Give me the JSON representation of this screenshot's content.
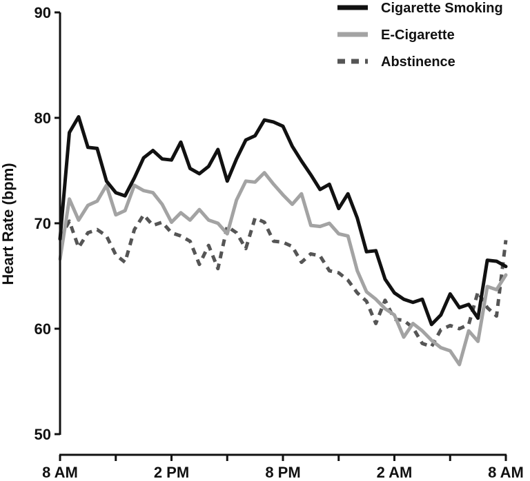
{
  "chart_data": {
    "type": "line",
    "title": "",
    "xlabel": "",
    "ylabel": "Heart Rate (bpm)",
    "ylim": [
      50,
      90
    ],
    "yticks": [
      50,
      60,
      70,
      80,
      90
    ],
    "xlim": [
      0,
      48
    ],
    "xticks": [
      {
        "x": 0,
        "label": "8 AM"
      },
      {
        "x": 6,
        "label": ""
      },
      {
        "x": 12,
        "label": "2 PM"
      },
      {
        "x": 18,
        "label": ""
      },
      {
        "x": 24,
        "label": "8 PM"
      },
      {
        "x": 30,
        "label": ""
      },
      {
        "x": 36,
        "label": "2 AM"
      },
      {
        "x": 42,
        "label": ""
      },
      {
        "x": 48,
        "label": "8 AM"
      }
    ],
    "grid": false,
    "legend_position": "top-right",
    "series": [
      {
        "name": "Cigarette Smoking",
        "color": "#111111",
        "style": "solid",
        "x": [
          0,
          1,
          2,
          3,
          4,
          5,
          6,
          7,
          8,
          9,
          10,
          11,
          12,
          13,
          14,
          15,
          16,
          17,
          18,
          19,
          20,
          21,
          22,
          23,
          24,
          25,
          26,
          27,
          28,
          29,
          30,
          31,
          32,
          33,
          34,
          35,
          36,
          37,
          38,
          39,
          40,
          41,
          42,
          43,
          44,
          45,
          46,
          47,
          48
        ],
        "values": [
          68.5,
          78.6,
          80.1,
          77.2,
          77.1,
          74.0,
          72.9,
          72.6,
          74.3,
          76.2,
          76.9,
          76.1,
          76.0,
          77.7,
          75.2,
          74.7,
          75.4,
          77.0,
          74.0,
          76.1,
          77.9,
          78.3,
          79.8,
          79.6,
          79.2,
          77.3,
          75.9,
          74.6,
          73.2,
          73.7,
          71.4,
          72.8,
          70.5,
          67.3,
          67.4,
          64.7,
          63.4,
          62.8,
          62.5,
          62.8,
          60.4,
          61.3,
          63.3,
          62.0,
          62.3,
          61.0,
          66.5,
          66.4,
          65.9
        ]
      },
      {
        "name": "E-Cigarette",
        "color": "#a3a3a3",
        "style": "solid",
        "x": [
          0,
          1,
          2,
          3,
          4,
          5,
          6,
          7,
          8,
          9,
          10,
          11,
          12,
          13,
          14,
          15,
          16,
          17,
          18,
          19,
          20,
          21,
          22,
          23,
          24,
          25,
          26,
          27,
          28,
          29,
          30,
          31,
          32,
          33,
          34,
          35,
          36,
          37,
          38,
          39,
          40,
          41,
          42,
          43,
          44,
          45,
          46,
          47,
          48
        ],
        "values": [
          66.6,
          72.3,
          70.3,
          71.7,
          72.1,
          73.6,
          70.8,
          71.2,
          73.6,
          73.1,
          72.9,
          71.8,
          70.1,
          71.0,
          70.3,
          71.3,
          70.3,
          70.0,
          69.0,
          72.2,
          74.0,
          73.9,
          74.8,
          73.7,
          72.7,
          71.8,
          72.8,
          69.8,
          69.7,
          70.0,
          69.0,
          68.8,
          65.5,
          63.5,
          62.8,
          61.9,
          61.3,
          59.2,
          60.5,
          59.8,
          58.9,
          58.2,
          57.9,
          56.6,
          59.8,
          58.8,
          64.0,
          63.7,
          65.1
        ]
      },
      {
        "name": "Abstinence",
        "color": "#555555",
        "style": "dashed",
        "x": [
          0,
          1,
          2,
          3,
          4,
          5,
          6,
          7,
          8,
          9,
          10,
          11,
          12,
          13,
          14,
          15,
          16,
          17,
          18,
          19,
          20,
          21,
          22,
          23,
          24,
          25,
          26,
          27,
          28,
          29,
          30,
          31,
          32,
          33,
          34,
          35,
          36,
          37,
          38,
          39,
          40,
          41,
          42,
          43,
          44,
          45,
          46,
          47,
          48
        ],
        "values": [
          68.6,
          70.2,
          67.7,
          69.1,
          69.4,
          68.8,
          67.0,
          66.3,
          69.4,
          70.8,
          69.8,
          70.1,
          69.1,
          68.8,
          68.3,
          66.1,
          67.9,
          65.7,
          69.7,
          69.1,
          67.6,
          70.5,
          70.1,
          68.3,
          68.2,
          67.8,
          66.3,
          67.1,
          66.9,
          65.5,
          65.3,
          64.6,
          63.4,
          62.6,
          60.5,
          62.7,
          60.9,
          60.8,
          60.1,
          58.6,
          58.3,
          59.9,
          60.3,
          60.0,
          60.4,
          63.5,
          62.0,
          61.2,
          68.4
        ]
      }
    ]
  }
}
